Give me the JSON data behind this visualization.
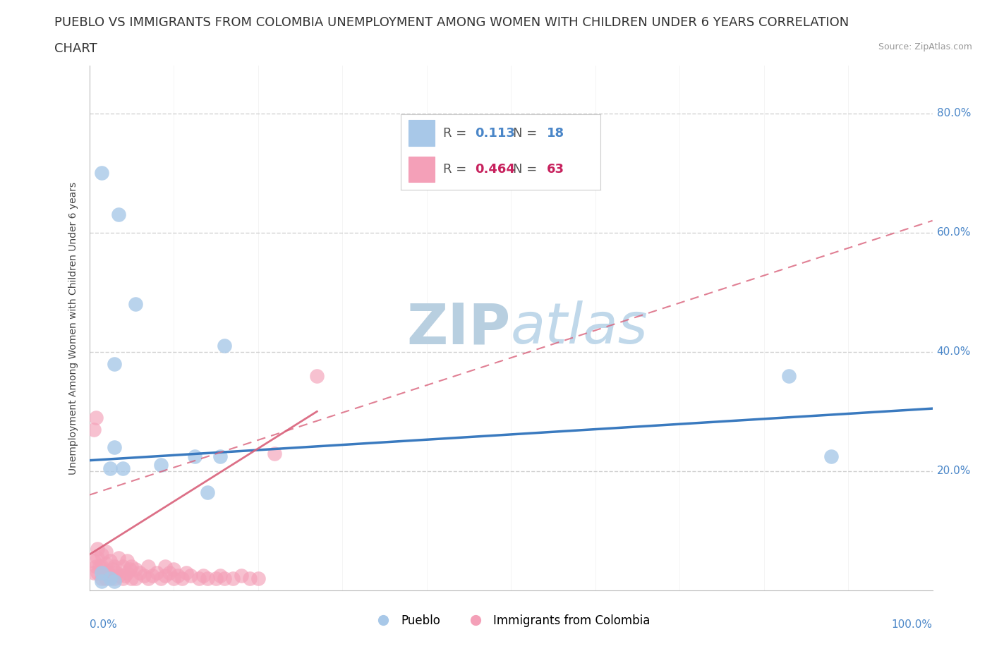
{
  "title_line1": "PUEBLO VS IMMIGRANTS FROM COLOMBIA UNEMPLOYMENT AMONG WOMEN WITH CHILDREN UNDER 6 YEARS CORRELATION",
  "title_line2": "CHART",
  "source": "Source: ZipAtlas.com",
  "ylabel": "Unemployment Among Women with Children Under 6 years",
  "legend_blue_R": "0.113",
  "legend_blue_N": "18",
  "legend_pink_R": "0.464",
  "legend_pink_N": "63",
  "legend_blue_label": "Pueblo",
  "legend_pink_label": "Immigrants from Colombia",
  "blue_color": "#a8c8e8",
  "pink_color": "#f4a0b8",
  "trend_blue_color": "#3a7abf",
  "trend_pink_color": "#d9607a",
  "watermark_color": "#c8d8ea",
  "background_color": "#ffffff",
  "pueblo_x": [
    0.015,
    0.035,
    0.055,
    0.03,
    0.085,
    0.125,
    0.155,
    0.03,
    0.025,
    0.04,
    0.015,
    0.025,
    0.83,
    0.88,
    0.015,
    0.03,
    0.14,
    0.16
  ],
  "pueblo_y": [
    0.7,
    0.63,
    0.48,
    0.38,
    0.21,
    0.225,
    0.225,
    0.24,
    0.205,
    0.205,
    0.03,
    0.02,
    0.36,
    0.225,
    0.015,
    0.015,
    0.165,
    0.41
  ],
  "colombia_x": [
    0.005,
    0.005,
    0.008,
    0.01,
    0.01,
    0.01,
    0.012,
    0.015,
    0.015,
    0.015,
    0.018,
    0.02,
    0.02,
    0.02,
    0.022,
    0.025,
    0.025,
    0.028,
    0.03,
    0.03,
    0.032,
    0.035,
    0.035,
    0.04,
    0.04,
    0.042,
    0.045,
    0.045,
    0.048,
    0.05,
    0.05,
    0.055,
    0.055,
    0.06,
    0.065,
    0.07,
    0.07,
    0.075,
    0.08,
    0.085,
    0.09,
    0.09,
    0.095,
    0.1,
    0.1,
    0.105,
    0.11,
    0.115,
    0.12,
    0.13,
    0.135,
    0.14,
    0.15,
    0.155,
    0.16,
    0.17,
    0.18,
    0.19,
    0.2,
    0.22,
    0.27,
    0.005,
    0.008
  ],
  "colombia_y": [
    0.03,
    0.05,
    0.04,
    0.03,
    0.055,
    0.07,
    0.04,
    0.02,
    0.04,
    0.06,
    0.03,
    0.02,
    0.045,
    0.065,
    0.03,
    0.025,
    0.05,
    0.035,
    0.02,
    0.04,
    0.03,
    0.025,
    0.055,
    0.02,
    0.04,
    0.025,
    0.03,
    0.05,
    0.035,
    0.02,
    0.04,
    0.02,
    0.035,
    0.03,
    0.025,
    0.02,
    0.04,
    0.025,
    0.03,
    0.02,
    0.025,
    0.04,
    0.03,
    0.02,
    0.035,
    0.025,
    0.02,
    0.03,
    0.025,
    0.02,
    0.025,
    0.02,
    0.02,
    0.025,
    0.02,
    0.02,
    0.025,
    0.02,
    0.02,
    0.23,
    0.36,
    0.27,
    0.29
  ],
  "xlim": [
    0,
    1.0
  ],
  "ylim": [
    0,
    0.88
  ],
  "ytick_vals": [
    0.2,
    0.4,
    0.6,
    0.8
  ],
  "ytick_labels": [
    "20.0%",
    "40.0%",
    "60.0%",
    "80.0%"
  ],
  "title_fontsize": 13,
  "axis_label_fontsize": 10,
  "tick_fontsize": 11,
  "legend_fontsize": 13,
  "blue_trend_start_y": 0.218,
  "blue_trend_end_y": 0.305,
  "pink_trend_start_x": 0.0,
  "pink_trend_start_y": 0.16,
  "pink_trend_end_x": 1.0,
  "pink_trend_end_y": 0.62
}
